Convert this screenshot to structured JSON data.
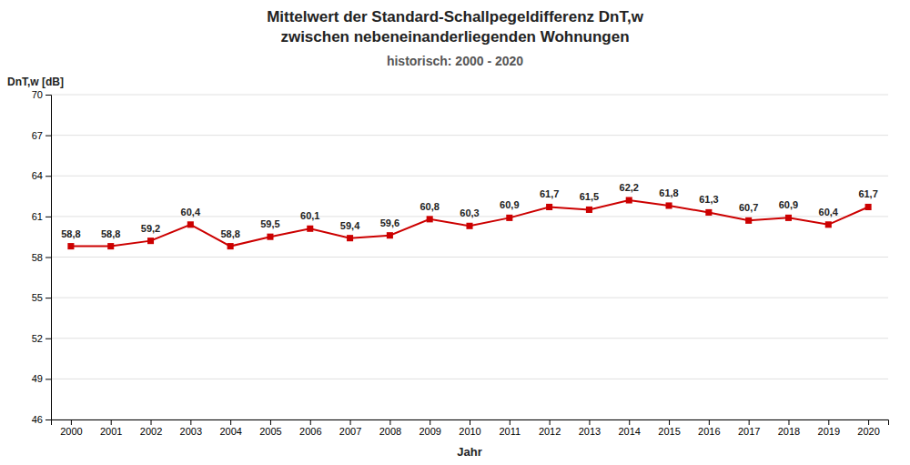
{
  "chart_data": {
    "type": "line",
    "title": "Mittelwert der Standard-Schallpegeldifferenz DnT,w\nzwischen nebeneinanderliegenden Wohnungen",
    "subtitle": "historisch: 2000 - 2020",
    "xlabel": "Jahr",
    "ylabel": "DnT,w [dB]",
    "x": [
      2000,
      2001,
      2002,
      2003,
      2004,
      2005,
      2006,
      2007,
      2008,
      2009,
      2010,
      2011,
      2012,
      2013,
      2014,
      2015,
      2016,
      2017,
      2018,
      2019,
      2020
    ],
    "values": [
      58.8,
      58.8,
      59.2,
      60.4,
      58.8,
      59.5,
      60.1,
      59.4,
      59.6,
      60.8,
      60.3,
      60.9,
      61.7,
      61.5,
      62.2,
      61.8,
      61.3,
      60.7,
      60.9,
      60.4,
      61.7
    ],
    "value_labels": [
      "58,8",
      "58,8",
      "59,2",
      "60,4",
      "58,8",
      "59,5",
      "60,1",
      "59,4",
      "59,6",
      "60,8",
      "60,3",
      "60,9",
      "61,7",
      "61,5",
      "62,2",
      "61,8",
      "61,3",
      "60,7",
      "60,9",
      "60,4",
      "61,7"
    ],
    "data_labels": true,
    "color": "#CC0000",
    "marker": "square",
    "line_style": "solid",
    "xlim": [
      1999.5,
      2020.5
    ],
    "xticks": [
      2000,
      2001,
      2002,
      2003,
      2004,
      2005,
      2006,
      2007,
      2008,
      2009,
      2010,
      2011,
      2012,
      2013,
      2014,
      2015,
      2016,
      2017,
      2018,
      2019,
      2020
    ],
    "ylim": [
      46,
      70
    ],
    "yticks": [
      46,
      49,
      52,
      55,
      58,
      61,
      64,
      67,
      70
    ],
    "grid": true
  }
}
